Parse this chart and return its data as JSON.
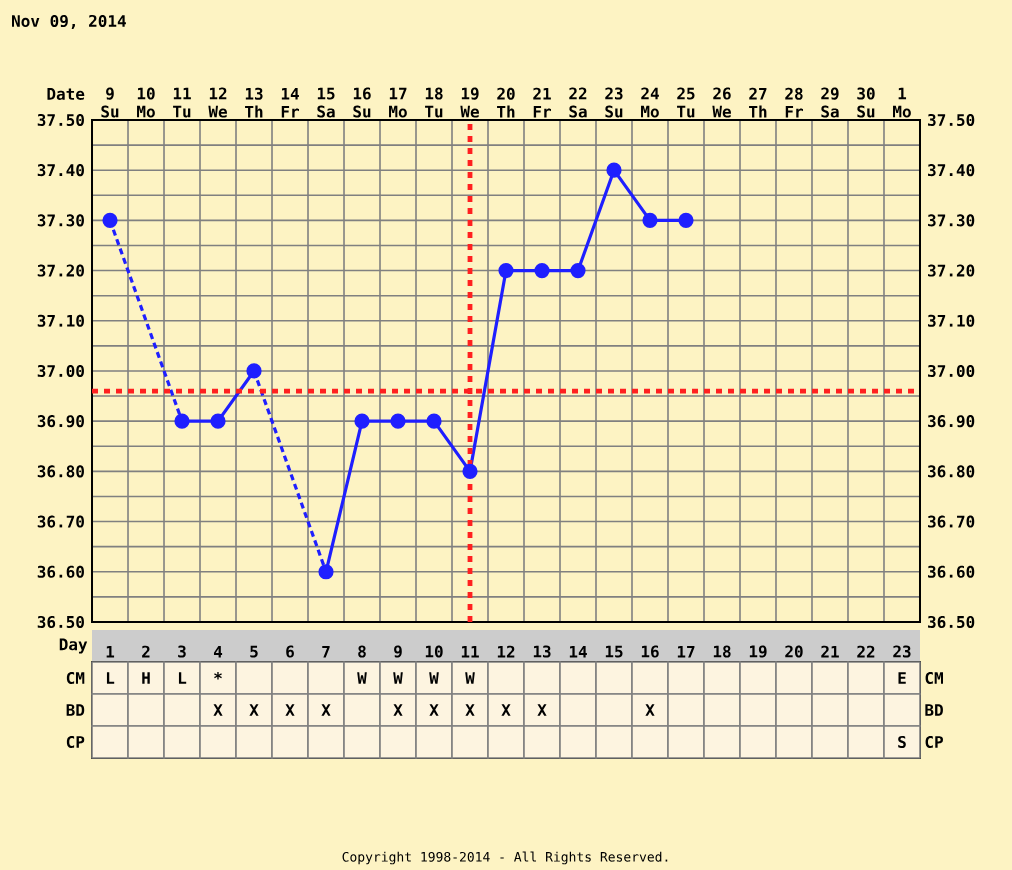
{
  "chart_data": [
    {
      "type": "line",
      "title": "Nov 09, 2014",
      "xlabel": "Date",
      "categories": [
        "9 Su",
        "10 Mo",
        "11 Tu",
        "12 We",
        "13 Th",
        "14 Fr",
        "15 Sa",
        "16 Su",
        "17 Mo",
        "18 Tu",
        "19 We",
        "20 Th",
        "21 Fr",
        "22 Sa",
        "23 Su",
        "24 Mo",
        "25 Tu",
        "26 We",
        "27 Th",
        "28 Fr",
        "29 Sa",
        "30 Su",
        "1 Mo"
      ],
      "series": [
        {
          "color": "#1f1fff",
          "values": [
            37.3,
            null,
            36.9,
            36.9,
            37.0,
            null,
            36.6,
            36.9,
            36.9,
            36.9,
            36.8,
            37.2,
            37.2,
            37.2,
            37.4,
            37.3,
            37.3,
            null,
            null,
            null,
            null,
            null,
            null
          ]
        }
      ],
      "ylim": [
        36.5,
        37.5
      ],
      "yticks": [
        {
          "value": 36.5,
          "label": "36.50"
        },
        {
          "value": 36.6,
          "label": "36.60"
        },
        {
          "value": 36.7,
          "label": "36.70"
        },
        {
          "value": 36.8,
          "label": "36.80"
        },
        {
          "value": 36.9,
          "label": "36.90"
        },
        {
          "value": 37.0,
          "label": "37.00"
        },
        {
          "value": 37.1,
          "label": "37.10"
        },
        {
          "value": 37.2,
          "label": "37.20"
        },
        {
          "value": 37.3,
          "label": "37.30"
        },
        {
          "value": 37.4,
          "label": "37.40"
        },
        {
          "value": 37.5,
          "label": "37.50"
        }
      ],
      "y2lim": [
        36.5,
        37.5
      ],
      "y2ticks": [
        {
          "value": 36.5,
          "label": "36.50"
        },
        {
          "value": 36.6,
          "label": "36.60"
        },
        {
          "value": 36.7,
          "label": "36.70"
        },
        {
          "value": 36.8,
          "label": "36.80"
        },
        {
          "value": 36.9,
          "label": "36.90"
        },
        {
          "value": 37.0,
          "label": "37.00"
        },
        {
          "value": 37.1,
          "label": "37.10"
        },
        {
          "value": 37.2,
          "label": "37.20"
        },
        {
          "value": 37.3,
          "label": "37.30"
        },
        {
          "value": 37.4,
          "label": "37.40"
        },
        {
          "value": 37.5,
          "label": "37.50"
        }
      ],
      "ref_lines": [
        {
          "axis": "y",
          "value": 36.96,
          "color": "#ff2020",
          "line_style": "dotted"
        },
        {
          "axis": "x",
          "value": "19 We",
          "color": "#ff2020",
          "line_style": "dotted"
        }
      ],
      "grid": true,
      "marker": "circle",
      "line_style": "solid"
    },
    {
      "type": "heatmap",
      "xlabel": "Day",
      "categories": [
        "1",
        "2",
        "3",
        "4",
        "5",
        "6",
        "7",
        "8",
        "9",
        "10",
        "11",
        "12",
        "13",
        "14",
        "15",
        "16",
        "17",
        "18",
        "19",
        "20",
        "21",
        "22",
        "23"
      ],
      "y_categories": [
        "CM",
        "BD",
        "CP"
      ],
      "y2_categories": [
        "CM",
        "BD",
        "CP"
      ],
      "cells": [
        [
          null,
          null,
          null,
          null,
          null,
          null,
          null,
          null,
          null,
          null,
          null,
          null,
          null,
          null,
          null,
          null,
          null,
          null,
          null,
          null,
          null,
          null,
          null
        ],
        [
          null,
          null,
          null,
          null,
          null,
          null,
          null,
          null,
          null,
          null,
          null,
          null,
          null,
          null,
          null,
          null,
          null,
          null,
          null,
          null,
          null,
          null,
          null
        ],
        [
          null,
          null,
          null,
          null,
          null,
          null,
          null,
          null,
          null,
          null,
          null,
          null,
          null,
          null,
          null,
          null,
          null,
          null,
          null,
          null,
          null,
          null,
          null
        ]
      ],
      "cell_labels": [
        [
          "L",
          "H",
          "L",
          "*",
          null,
          null,
          null,
          "W",
          "W",
          "W",
          "W",
          null,
          null,
          null,
          null,
          null,
          null,
          null,
          null,
          null,
          null,
          null,
          "E"
        ],
        [
          null,
          null,
          null,
          "X",
          "X",
          "X",
          "X",
          null,
          "X",
          "X",
          "X",
          "X",
          "X",
          null,
          null,
          "X",
          null,
          null,
          null,
          null,
          null,
          null,
          null
        ],
        [
          null,
          null,
          null,
          null,
          null,
          null,
          null,
          null,
          null,
          null,
          null,
          null,
          null,
          null,
          null,
          null,
          null,
          null,
          null,
          null,
          null,
          null,
          "S"
        ]
      ],
      "annotations": [
        "Copyright 1998-2014 - All Rights Reserved."
      ]
    }
  ]
}
